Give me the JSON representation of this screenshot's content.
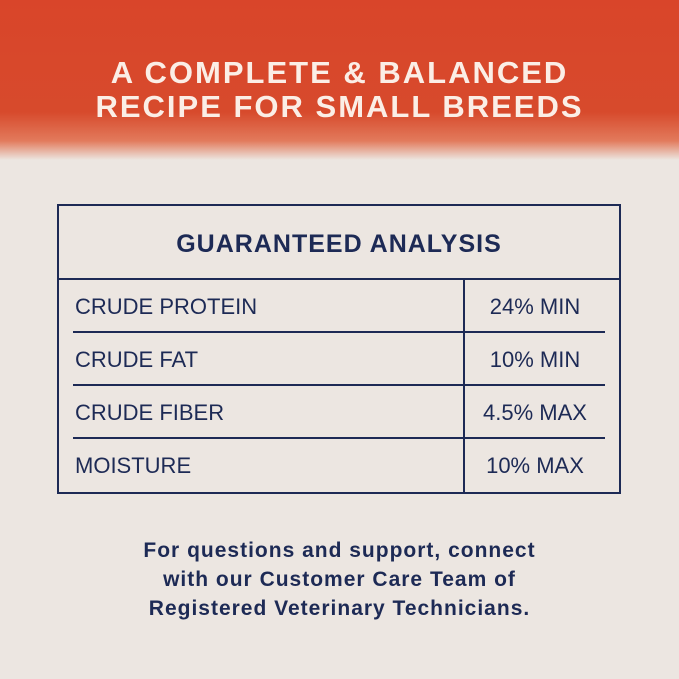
{
  "header": {
    "line1": "A COMPLETE & BALANCED",
    "line2": "RECIPE FOR SMALL BREEDS"
  },
  "table": {
    "title": "GUARANTEED ANALYSIS",
    "rows": [
      {
        "label": "CRUDE PROTEIN",
        "value": "24% MIN"
      },
      {
        "label": "CRUDE FAT",
        "value": "10% MIN"
      },
      {
        "label": "CRUDE FIBER",
        "value": "4.5% MAX"
      },
      {
        "label": "MOISTURE",
        "value": "10% MAX"
      }
    ]
  },
  "footer": {
    "line1": "For questions and support, connect",
    "line2": "with our Customer Care Team of",
    "line3": "Registered Veterinary Technicians."
  },
  "colors": {
    "banner": "#d9452a",
    "navy": "#1d2a55",
    "background": "#ece6e1"
  }
}
